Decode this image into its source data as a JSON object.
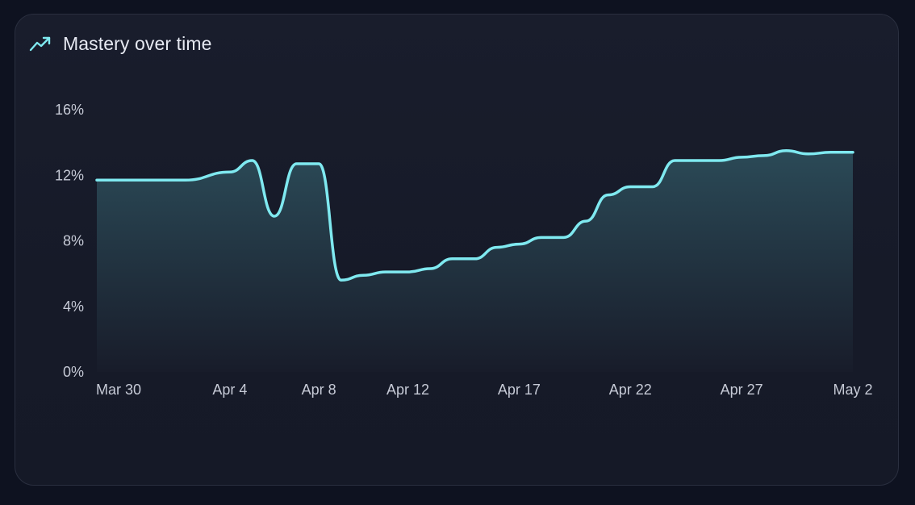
{
  "header": {
    "title": "Mastery over time",
    "icon": "trending-up-icon"
  },
  "colors": {
    "line": "#7fe9f0",
    "area_top": "#2b4a57",
    "area_bottom": "#181c2a",
    "background": "#161a28"
  },
  "chart_data": {
    "type": "area",
    "title": "Mastery over time",
    "xlabel": "",
    "ylabel": "",
    "x_ticks": [
      "Mar 30",
      "Apr 4",
      "Apr 8",
      "Apr 12",
      "Apr 17",
      "Apr 22",
      "Apr 27",
      "May 2"
    ],
    "y_ticks": [
      "0%",
      "4%",
      "8%",
      "12%",
      "16%"
    ],
    "ylim": [
      0,
      16
    ],
    "xlim": [
      "2025-03-30",
      "2025-05-02"
    ],
    "grid": false,
    "legend": "none",
    "series": [
      {
        "x": [
          "2025-03-29",
          "2025-04-02",
          "2025-04-04",
          "2025-04-05",
          "2025-04-06",
          "2025-04-07",
          "2025-04-08",
          "2025-04-09",
          "2025-04-10",
          "2025-04-11",
          "2025-04-12",
          "2025-04-13",
          "2025-04-14",
          "2025-04-15",
          "2025-04-16",
          "2025-04-17",
          "2025-04-18",
          "2025-04-19",
          "2025-04-20",
          "2025-04-21",
          "2025-04-22",
          "2025-04-23",
          "2025-04-24",
          "2025-04-25",
          "2025-04-26",
          "2025-04-27",
          "2025-04-28",
          "2025-04-29",
          "2025-04-30",
          "2025-05-01",
          "2025-05-02"
        ],
        "y": [
          11.7,
          11.7,
          12.2,
          12.9,
          9.5,
          12.7,
          12.7,
          5.6,
          5.9,
          6.1,
          6.1,
          6.3,
          6.9,
          6.9,
          7.6,
          7.8,
          8.2,
          8.2,
          9.2,
          10.8,
          11.3,
          11.3,
          12.9,
          12.9,
          12.9,
          13.1,
          13.2,
          13.5,
          13.3,
          13.4,
          13.4
        ]
      }
    ]
  }
}
